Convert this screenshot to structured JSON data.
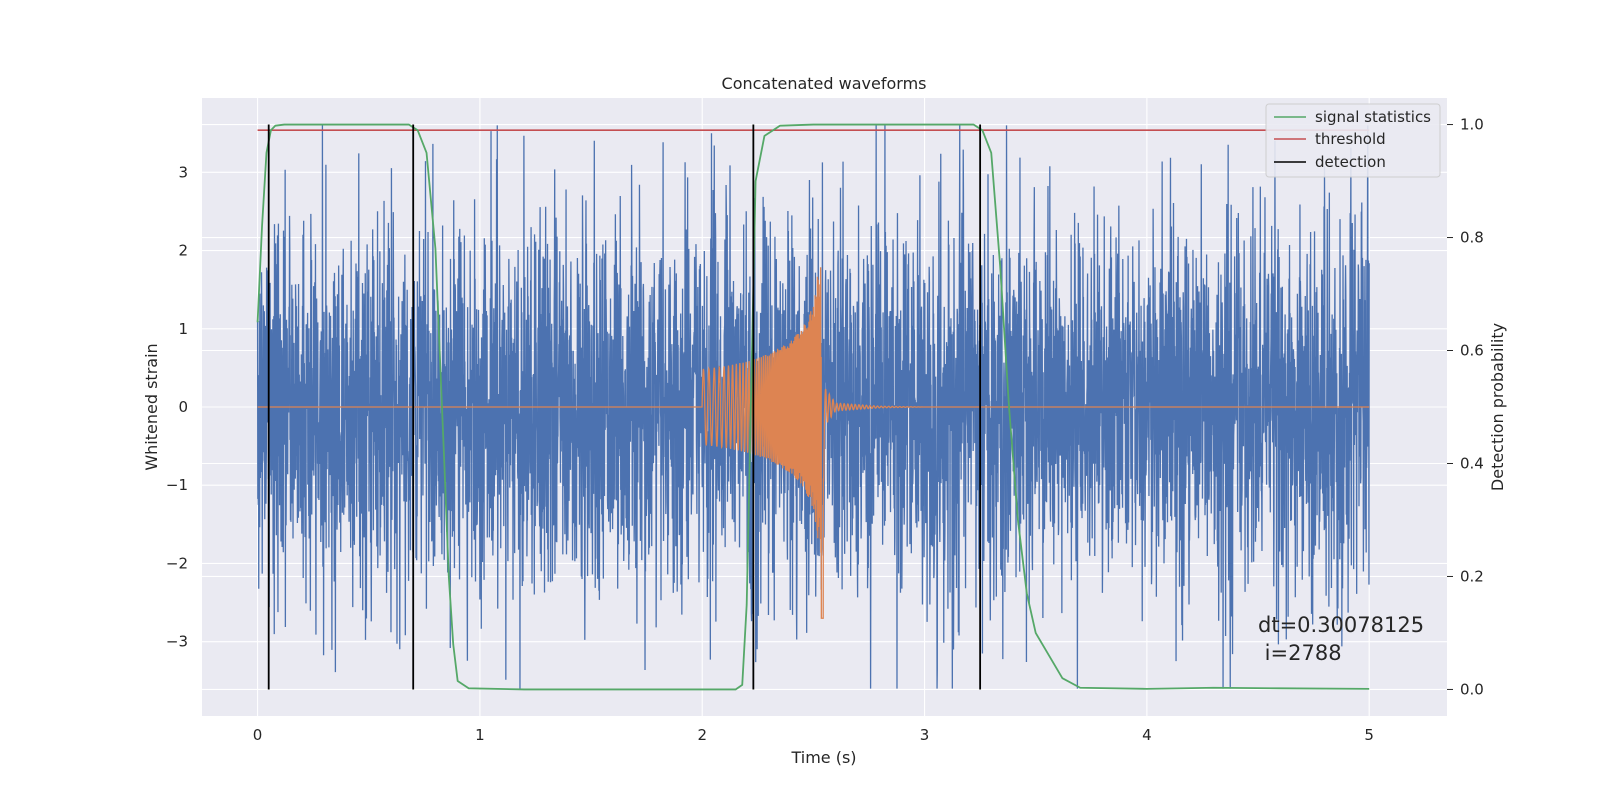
{
  "chart_data": {
    "type": "line",
    "title": "Concatenated waveforms",
    "xlabel": "Time (s)",
    "ylabel_left": "Whitened strain",
    "ylabel_right": "Detection probability",
    "xlim": [
      -0.25,
      5.35
    ],
    "ylim_left": [
      -3.95,
      3.95
    ],
    "ylim_right": [
      -0.047,
      1.047
    ],
    "x_ticks": [
      0,
      1,
      2,
      3,
      4,
      5
    ],
    "x_tick_labels": [
      "0",
      "1",
      "2",
      "3",
      "4",
      "5"
    ],
    "y_left_ticks": [
      -3,
      -2,
      -1,
      0,
      1,
      2,
      3
    ],
    "y_left_tick_labels": [
      "−3",
      "−2",
      "−1",
      "0",
      "1",
      "2",
      "3"
    ],
    "y_right_ticks": [
      0.0,
      0.2,
      0.4,
      0.6,
      0.8,
      1.0
    ],
    "y_right_tick_labels": [
      "0.0",
      "0.2",
      "0.4",
      "0.6",
      "0.8",
      "1.0"
    ],
    "grid": true,
    "legend_position": "top-right",
    "series": [
      {
        "name": "",
        "axis": "left",
        "color": "#4c72b0",
        "kind": "noise",
        "x_range": [
          0,
          5
        ],
        "approx_abs_peak": 3.6,
        "description_values": {
          "typical_amplitude": 1.2
        }
      },
      {
        "name": "",
        "axis": "left",
        "color": "#dd8452",
        "kind": "chirp",
        "baseline": 0,
        "x": [
          2.0,
          2.1,
          2.2,
          2.3,
          2.4,
          2.45,
          2.5,
          2.52,
          2.54,
          2.55,
          2.6,
          2.8,
          3.0
        ],
        "envelope": [
          0.48,
          0.52,
          0.58,
          0.68,
          0.85,
          1.0,
          1.3,
          1.7,
          2.1,
          0.25,
          0.05,
          0.01,
          0.0
        ]
      },
      {
        "name": "signal statistics",
        "axis": "right",
        "color": "#55a868",
        "x": [
          0.0,
          0.02,
          0.04,
          0.06,
          0.08,
          0.12,
          0.2,
          0.4,
          0.6,
          0.68,
          0.72,
          0.76,
          0.8,
          0.84,
          0.86,
          0.88,
          0.9,
          0.95,
          1.2,
          1.6,
          2.0,
          2.15,
          2.18,
          2.2,
          2.24,
          2.28,
          2.35,
          2.5,
          3.0,
          3.22,
          3.26,
          3.3,
          3.34,
          3.38,
          3.42,
          3.46,
          3.5,
          3.56,
          3.62,
          3.7,
          4.0,
          4.3,
          4.6,
          5.0
        ],
        "y": [
          0.65,
          0.82,
          0.95,
          0.99,
          0.998,
          1.0,
          1.0,
          1.0,
          1.0,
          1.0,
          0.99,
          0.95,
          0.78,
          0.4,
          0.2,
          0.08,
          0.015,
          0.002,
          0.0,
          0.0,
          0.0,
          0.0,
          0.008,
          0.15,
          0.9,
          0.98,
          0.998,
          1.0,
          1.0,
          1.0,
          0.99,
          0.95,
          0.75,
          0.5,
          0.3,
          0.17,
          0.1,
          0.06,
          0.02,
          0.003,
          0.001,
          0.003,
          0.002,
          0.001
        ]
      },
      {
        "name": "threshold",
        "axis": "right",
        "color": "#c44e52",
        "x": [
          0,
          5
        ],
        "y": [
          0.99,
          0.99
        ]
      },
      {
        "name": "detection",
        "axis": "right",
        "color": "#000000",
        "kind": "vlines",
        "x": [
          0.05,
          0.7,
          2.23,
          3.25
        ],
        "y_range": [
          0.0,
          1.0
        ]
      }
    ],
    "annotations": {
      "dt": "dt=0.30078125",
      "i": " i=2788"
    }
  }
}
